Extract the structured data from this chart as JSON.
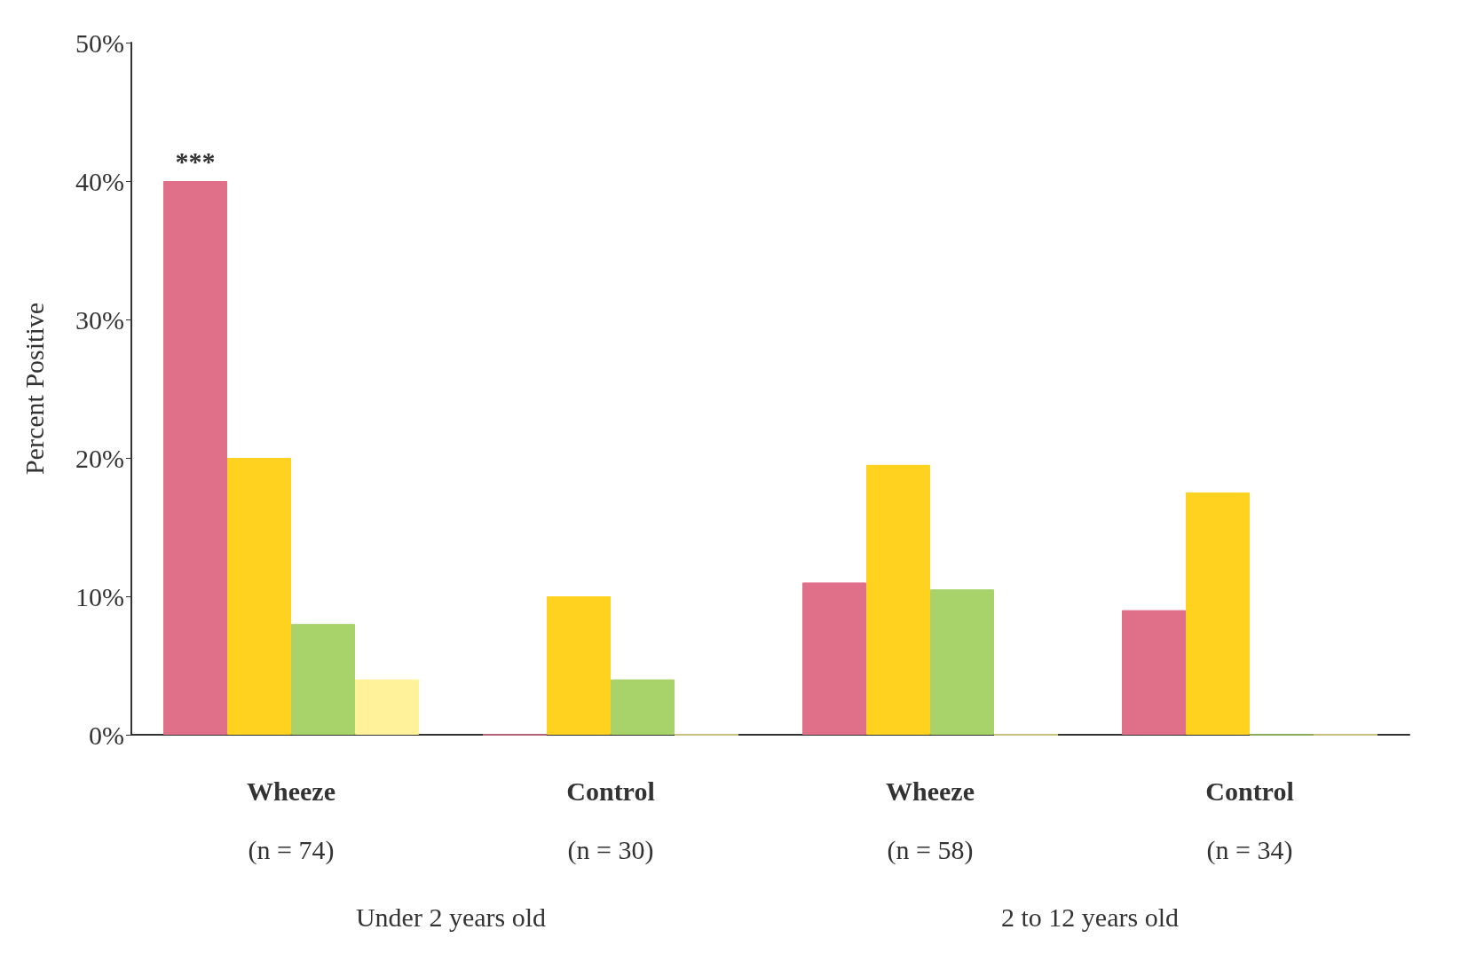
{
  "chart_data": {
    "type": "bar",
    "ylabel": "Percent Positive",
    "categories": [
      "Wheeze\n(n = 74)",
      "Control\n(n = 30)",
      "Wheeze\n(n = 58)",
      "Control\n(n = 34)"
    ],
    "series": [
      {
        "color": "#e0708a",
        "values": [
          40,
          0,
          11,
          9
        ]
      },
      {
        "color": "#ffd21f",
        "values": [
          20,
          10,
          19.5,
          17.5
        ]
      },
      {
        "color": "#a8d26a",
        "values": [
          8,
          4,
          10.5,
          0
        ]
      },
      {
        "color": "#fff29a",
        "values": [
          4,
          0,
          0,
          0
        ]
      }
    ],
    "ylim": [
      0,
      50
    ],
    "yticks": [
      {
        "value": 0,
        "label": "0%"
      },
      {
        "value": 10,
        "label": "10%"
      },
      {
        "value": 20,
        "label": "20%"
      },
      {
        "value": 30,
        "label": "30%"
      },
      {
        "value": 40,
        "label": "40%"
      },
      {
        "value": 50,
        "label": "50%"
      }
    ],
    "grid": false,
    "annotations": [
      "***",
      "Under 2 years old",
      "2 to 12 years old"
    ]
  }
}
